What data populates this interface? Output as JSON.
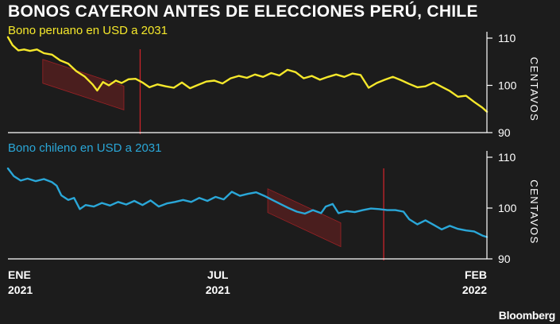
{
  "title": "BONOS CAYERON ANTES DE ELECCIONES PERÚ, CHILE",
  "source": "Bloomberg",
  "colors": {
    "peru": "#f5e82b",
    "chile": "#2aa7d8",
    "background": "#1c1c1c",
    "event": "#c8242a",
    "shade": "#5a1f1f"
  },
  "x_ticks": [
    {
      "month": "ENE",
      "year": "2021"
    },
    {
      "month": "JUL",
      "year": "2021"
    },
    {
      "month": "FEB",
      "year": "2022"
    }
  ],
  "chart_data": [
    {
      "type": "line",
      "title": "Bono peruano en USD a 2031",
      "ylabel": "CENTAVOS",
      "ylim": [
        90,
        110
      ],
      "yticks": [
        90,
        100,
        110
      ],
      "x_range": [
        "2021-01-01",
        "2022-02-18"
      ],
      "series": [
        {
          "values": [
            [
              "2021-01-01",
              110.2
            ],
            [
              "2021-01-05",
              108.5
            ],
            [
              "2021-01-10",
              107.4
            ],
            [
              "2021-01-15",
              107.6
            ],
            [
              "2021-01-20",
              107.3
            ],
            [
              "2021-01-26",
              107.6
            ],
            [
              "2021-02-01",
              106.8
            ],
            [
              "2021-02-08",
              106.5
            ],
            [
              "2021-02-15",
              105.3
            ],
            [
              "2021-02-22",
              104.6
            ],
            [
              "2021-03-01",
              103.0
            ],
            [
              "2021-03-08",
              101.9
            ],
            [
              "2021-03-15",
              100.2
            ],
            [
              "2021-03-19",
              98.9
            ],
            [
              "2021-03-24",
              100.7
            ],
            [
              "2021-03-29",
              100.0
            ],
            [
              "2021-04-04",
              101.0
            ],
            [
              "2021-04-09",
              100.5
            ],
            [
              "2021-04-15",
              101.3
            ],
            [
              "2021-04-21",
              101.4
            ],
            [
              "2021-04-27",
              100.6
            ],
            [
              "2021-05-03",
              99.6
            ],
            [
              "2021-05-10",
              100.2
            ],
            [
              "2021-05-17",
              99.8
            ],
            [
              "2021-05-24",
              99.5
            ],
            [
              "2021-05-31",
              100.6
            ],
            [
              "2021-06-07",
              99.4
            ],
            [
              "2021-06-14",
              100.1
            ],
            [
              "2021-06-21",
              100.8
            ],
            [
              "2021-06-28",
              101.0
            ],
            [
              "2021-07-05",
              100.4
            ],
            [
              "2021-07-12",
              101.5
            ],
            [
              "2021-07-19",
              102.0
            ],
            [
              "2021-07-26",
              101.6
            ],
            [
              "2021-08-02",
              102.3
            ],
            [
              "2021-08-09",
              101.8
            ],
            [
              "2021-08-16",
              102.6
            ],
            [
              "2021-08-23",
              102.1
            ],
            [
              "2021-08-30",
              103.3
            ],
            [
              "2021-09-06",
              102.8
            ],
            [
              "2021-09-13",
              101.5
            ],
            [
              "2021-09-20",
              102.0
            ],
            [
              "2021-09-27",
              101.2
            ],
            [
              "2021-10-04",
              101.8
            ],
            [
              "2021-10-11",
              102.3
            ],
            [
              "2021-10-18",
              101.8
            ],
            [
              "2021-10-25",
              102.5
            ],
            [
              "2021-11-01",
              102.2
            ],
            [
              "2021-11-08",
              99.5
            ],
            [
              "2021-11-15",
              100.5
            ],
            [
              "2021-11-22",
              101.2
            ],
            [
              "2021-11-29",
              101.8
            ],
            [
              "2021-12-06",
              101.1
            ],
            [
              "2021-12-13",
              100.3
            ],
            [
              "2021-12-20",
              99.6
            ],
            [
              "2021-12-27",
              99.8
            ],
            [
              "2022-01-03",
              100.6
            ],
            [
              "2022-01-10",
              99.7
            ],
            [
              "2022-01-17",
              98.8
            ],
            [
              "2022-01-24",
              97.6
            ],
            [
              "2022-01-31",
              97.8
            ],
            [
              "2022-02-07",
              96.5
            ],
            [
              "2022-02-14",
              95.3
            ],
            [
              "2022-02-18",
              94.4
            ]
          ]
        }
      ],
      "shaded_trend": {
        "start": "2021-01-31",
        "end": "2021-04-11",
        "from": 105.5,
        "to": 94.8
      },
      "event_line": "2021-04-25"
    },
    {
      "type": "line",
      "title": "Bono chileno en USD a 2031",
      "ylabel": "CENTAVOS",
      "ylim": [
        90,
        110
      ],
      "yticks": [
        90,
        100,
        110
      ],
      "x_range": [
        "2021-01-01",
        "2022-02-18"
      ],
      "series": [
        {
          "values": [
            [
              "2021-01-01",
              107.8
            ],
            [
              "2021-01-06",
              106.3
            ],
            [
              "2021-01-12",
              105.4
            ],
            [
              "2021-01-18",
              105.8
            ],
            [
              "2021-01-25",
              105.3
            ],
            [
              "2021-02-01",
              105.7
            ],
            [
              "2021-02-08",
              105.1
            ],
            [
              "2021-02-12",
              104.4
            ],
            [
              "2021-02-16",
              102.5
            ],
            [
              "2021-02-22",
              101.6
            ],
            [
              "2021-02-27",
              102.0
            ],
            [
              "2021-03-04",
              99.8
            ],
            [
              "2021-03-09",
              100.6
            ],
            [
              "2021-03-16",
              100.3
            ],
            [
              "2021-03-23",
              101.0
            ],
            [
              "2021-03-30",
              100.5
            ],
            [
              "2021-04-06",
              101.2
            ],
            [
              "2021-04-13",
              100.7
            ],
            [
              "2021-04-20",
              101.4
            ],
            [
              "2021-04-27",
              100.6
            ],
            [
              "2021-05-04",
              101.5
            ],
            [
              "2021-05-11",
              100.3
            ],
            [
              "2021-05-18",
              100.9
            ],
            [
              "2021-05-25",
              101.2
            ],
            [
              "2021-06-01",
              101.6
            ],
            [
              "2021-06-08",
              101.2
            ],
            [
              "2021-06-15",
              102.0
            ],
            [
              "2021-06-22",
              101.4
            ],
            [
              "2021-06-29",
              102.2
            ],
            [
              "2021-07-06",
              101.7
            ],
            [
              "2021-07-13",
              103.2
            ],
            [
              "2021-07-20",
              102.4
            ],
            [
              "2021-07-27",
              102.8
            ],
            [
              "2021-08-03",
              103.1
            ],
            [
              "2021-08-10",
              102.4
            ],
            [
              "2021-08-17",
              101.6
            ],
            [
              "2021-08-24",
              100.8
            ],
            [
              "2021-08-31",
              100.0
            ],
            [
              "2021-09-07",
              99.3
            ],
            [
              "2021-09-14",
              98.9
            ],
            [
              "2021-09-21",
              99.6
            ],
            [
              "2021-09-28",
              99.0
            ],
            [
              "2021-10-02",
              100.3
            ],
            [
              "2021-10-08",
              100.8
            ],
            [
              "2021-10-13",
              99.0
            ],
            [
              "2021-10-20",
              99.4
            ],
            [
              "2021-10-27",
              99.2
            ],
            [
              "2021-11-03",
              99.6
            ],
            [
              "2021-11-10",
              99.9
            ],
            [
              "2021-11-17",
              99.8
            ],
            [
              "2021-11-24",
              99.6
            ],
            [
              "2021-12-01",
              99.6
            ],
            [
              "2021-12-08",
              99.3
            ],
            [
              "2021-12-13",
              97.8
            ],
            [
              "2021-12-20",
              96.8
            ],
            [
              "2021-12-27",
              97.6
            ],
            [
              "2022-01-03",
              96.7
            ],
            [
              "2022-01-10",
              95.8
            ],
            [
              "2022-01-17",
              96.5
            ],
            [
              "2022-01-24",
              95.9
            ],
            [
              "2022-01-31",
              95.6
            ],
            [
              "2022-02-07",
              95.4
            ],
            [
              "2022-02-14",
              94.6
            ],
            [
              "2022-02-18",
              94.3
            ]
          ]
        }
      ],
      "shaded_trend": {
        "start": "2021-08-13",
        "end": "2021-10-15",
        "from": 103.8,
        "to": 92.4
      },
      "event_line": "2021-11-21"
    }
  ]
}
